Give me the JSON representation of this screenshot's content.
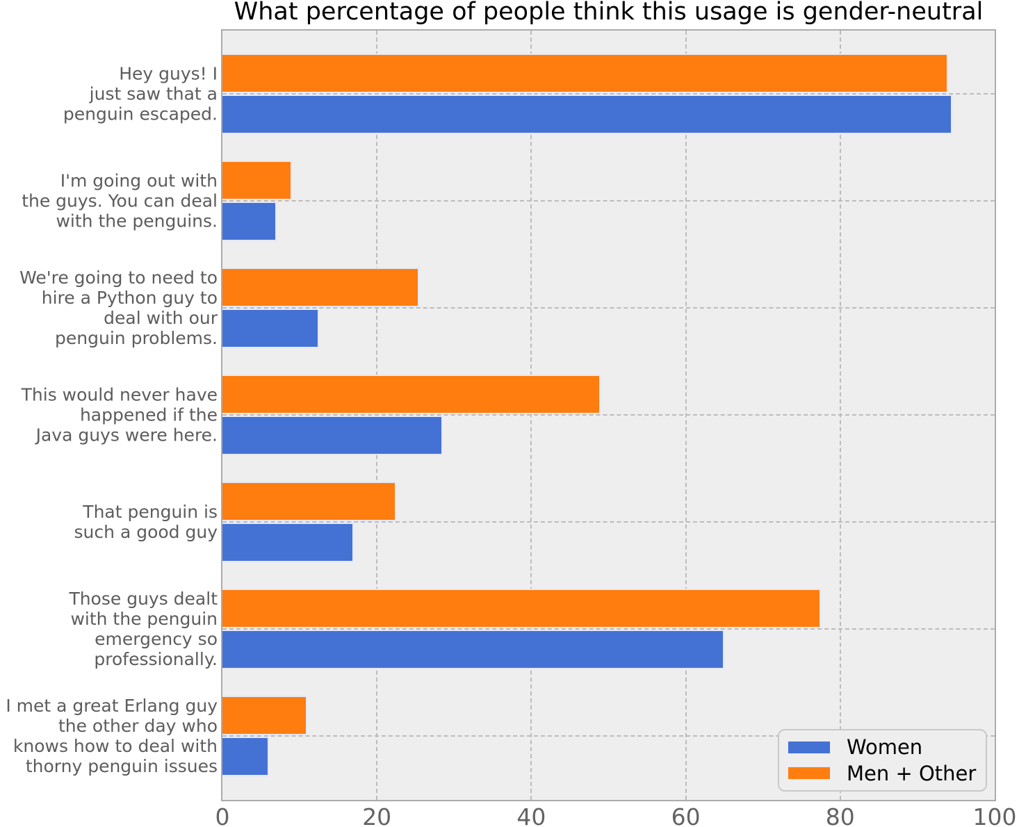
{
  "title": "What percentage of people think this usage is gender-neutral",
  "colors": {
    "women": "#4471d4",
    "men_other": "#ff7d0e",
    "plot_background": "#eeeeee",
    "grid": "#bcbcbc"
  },
  "chart_data": {
    "type": "bar",
    "orientation": "horizontal",
    "title": "What percentage of people think this usage is gender-neutral",
    "categories": [
      "Hey guys! I\njust saw that a\npenguin escaped.",
      "I'm going out with\nthe guys. You can deal\nwith the penguins.",
      "We're going to need to\nhire a Python guy to\ndeal with our\npenguin problems.",
      "This would never have\nhappened if the\nJava guys were here.",
      "That penguin is\nsuch a good guy",
      "Those guys dealt\nwith the penguin\nemergency so\nprofessionally.",
      "I met a great Erlang guy\nthe other day who\nknows how to deal with\nthorny penguin issues"
    ],
    "series": [
      {
        "name": "Women",
        "color_key": "women",
        "values": [
          94.5,
          7,
          12.5,
          28.5,
          17,
          65,
          6
        ]
      },
      {
        "name": "Men + Other",
        "color_key": "men_other",
        "values": [
          94,
          9,
          25.5,
          49,
          22.5,
          77.5,
          11
        ]
      }
    ],
    "xlabel": "",
    "ylabel": "",
    "xlim": [
      0,
      100
    ],
    "x_ticks": [
      0,
      20,
      40,
      60,
      80,
      100
    ],
    "grid": "dashed vertical at x ticks and horizontal at category centers",
    "legend_position": "lower right",
    "bar_order_per_category": [
      "Men + Other",
      "Women"
    ]
  },
  "legend": {
    "items": [
      {
        "label": "Women"
      },
      {
        "label": "Men + Other"
      }
    ]
  }
}
